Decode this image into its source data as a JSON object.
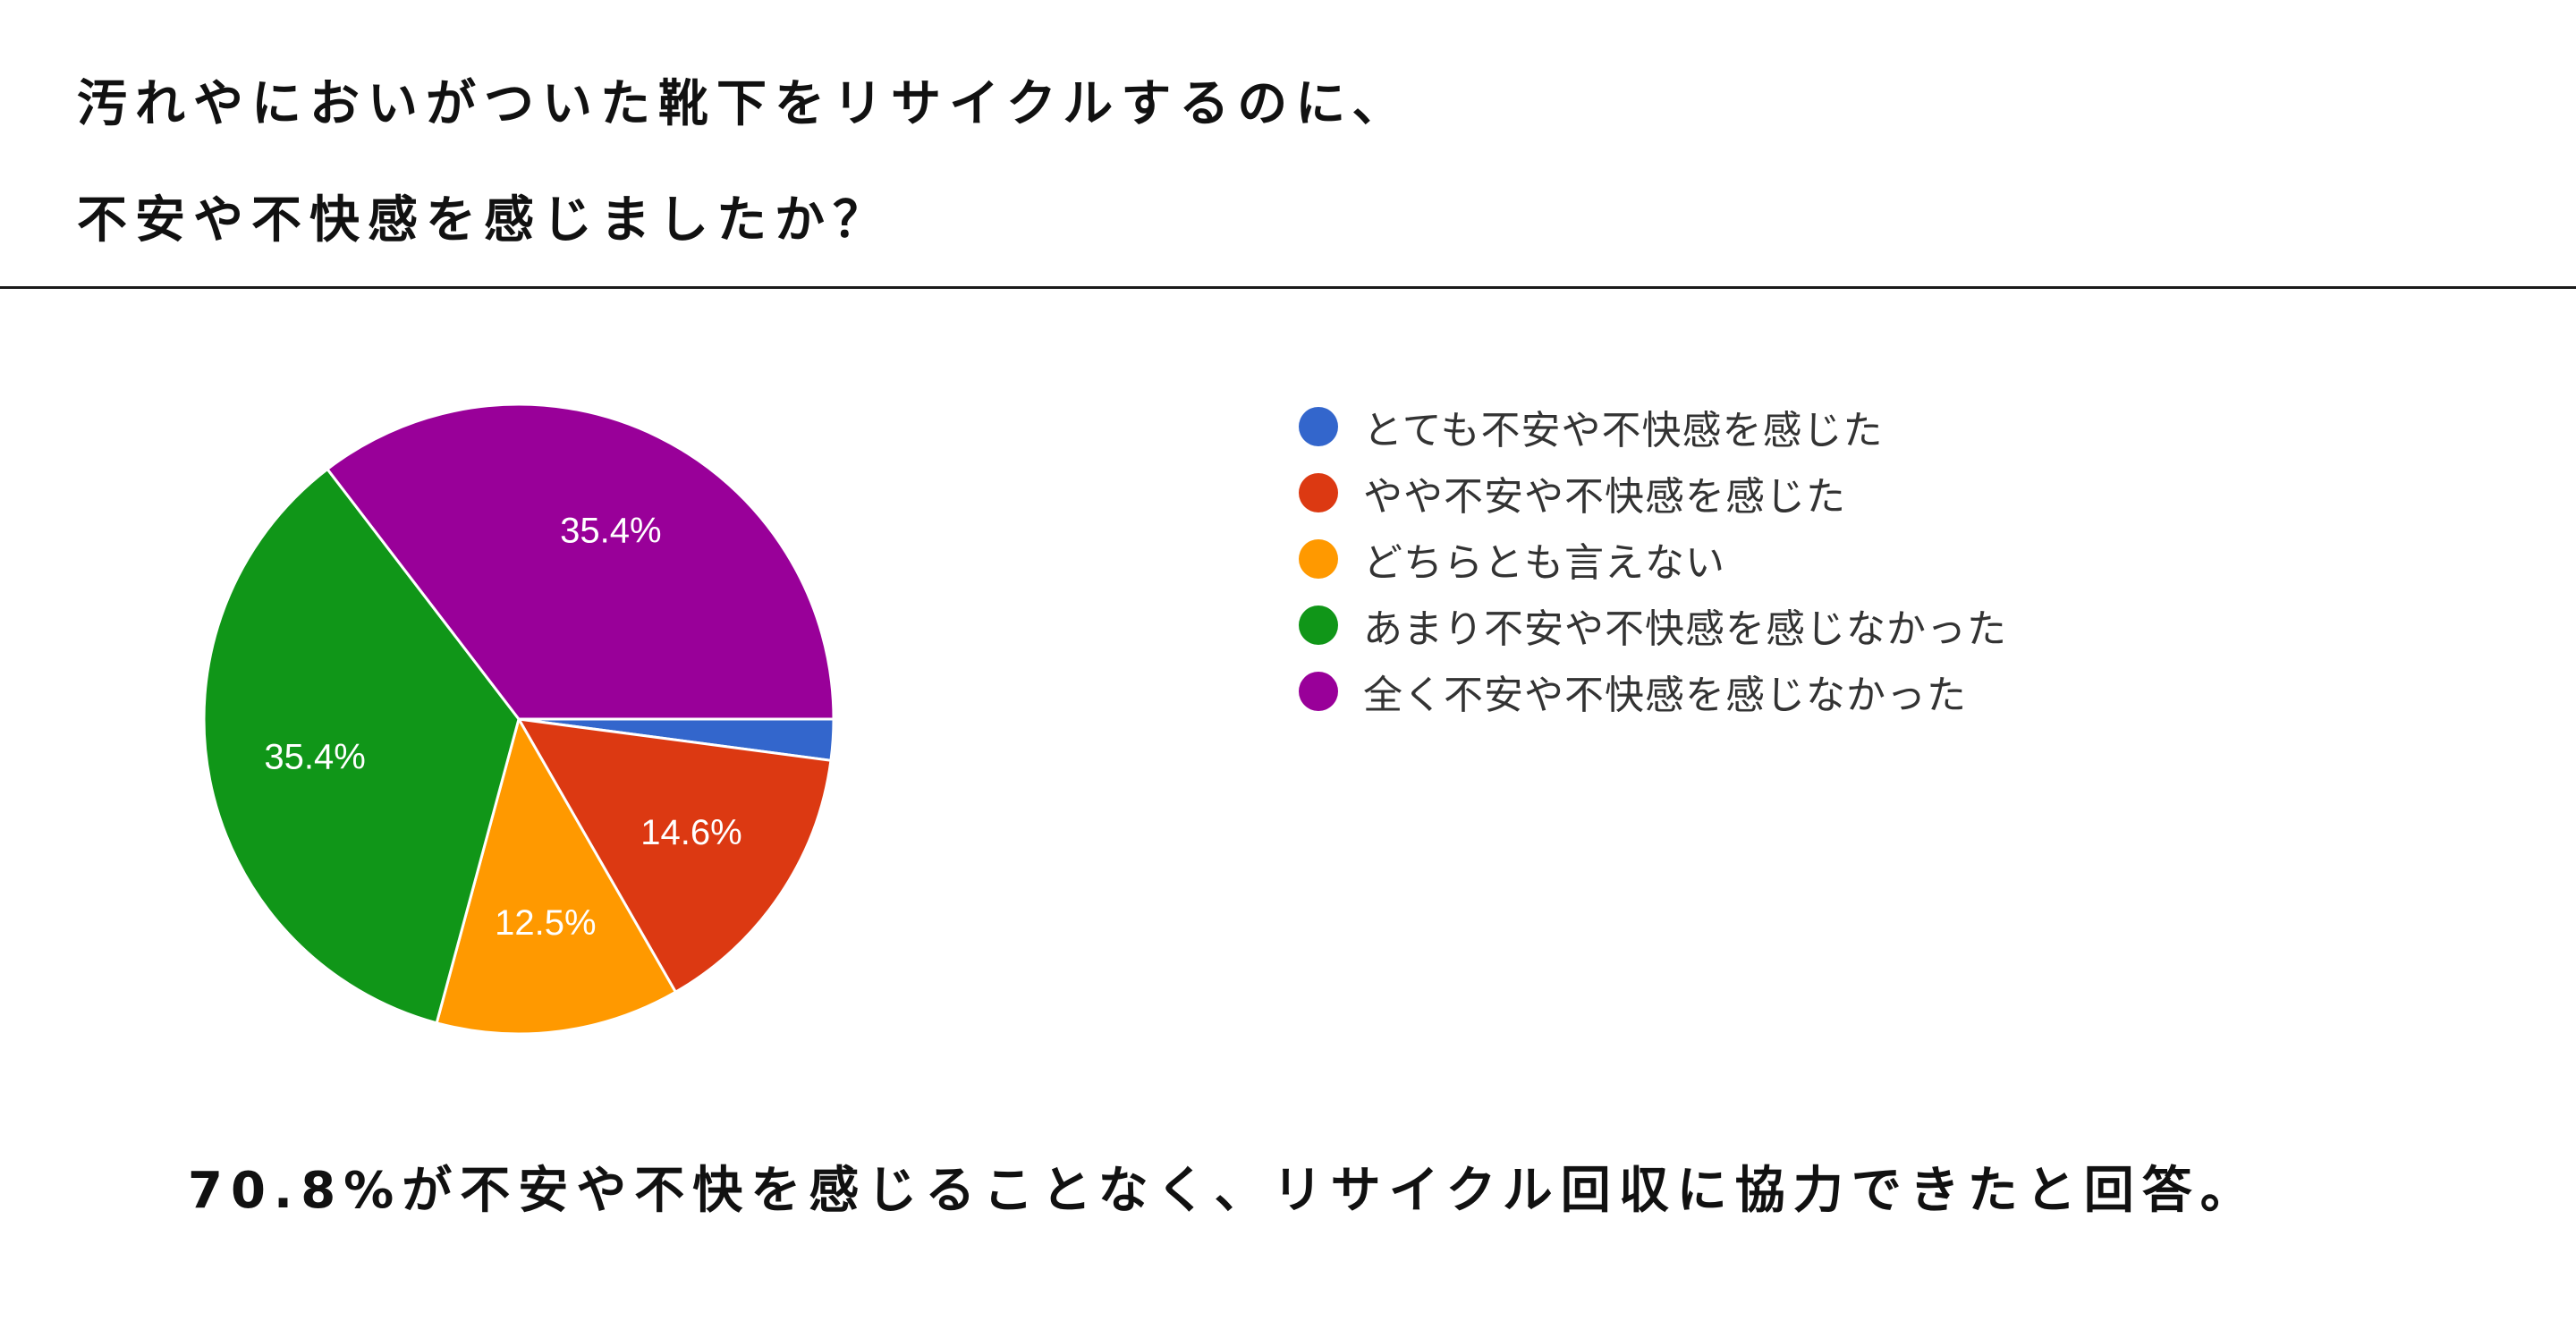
{
  "title_lines": [
    "汚れやにおいがついた靴下をリサイクルするのに、",
    "不安や不快感を感じましたか？"
  ],
  "conclusion": "70.8%が不安や不快を感じることなく、リサイクル回収に協力できたと回答。",
  "chart_data": {
    "type": "pie",
    "title": "",
    "slices": [
      {
        "label": "とても不安や不快感を感じた",
        "value": 2.1,
        "color": "#3366cc",
        "data_label": ""
      },
      {
        "label": "やや不安や不快感を感じた",
        "value": 14.6,
        "color": "#dc3912",
        "data_label": "14.6%"
      },
      {
        "label": "どちらとも言えない",
        "value": 12.5,
        "color": "#ff9900",
        "data_label": "12.5%"
      },
      {
        "label": "あまり不安や不快感を感じなかった",
        "value": 35.4,
        "color": "#109618",
        "data_label": "35.4%"
      },
      {
        "label": "全く不安や不快感を感じなかった",
        "value": 35.4,
        "color": "#990099",
        "data_label": "35.4%"
      }
    ],
    "start_angle_deg": 90,
    "direction": "clockwise",
    "legend_position": "right"
  }
}
